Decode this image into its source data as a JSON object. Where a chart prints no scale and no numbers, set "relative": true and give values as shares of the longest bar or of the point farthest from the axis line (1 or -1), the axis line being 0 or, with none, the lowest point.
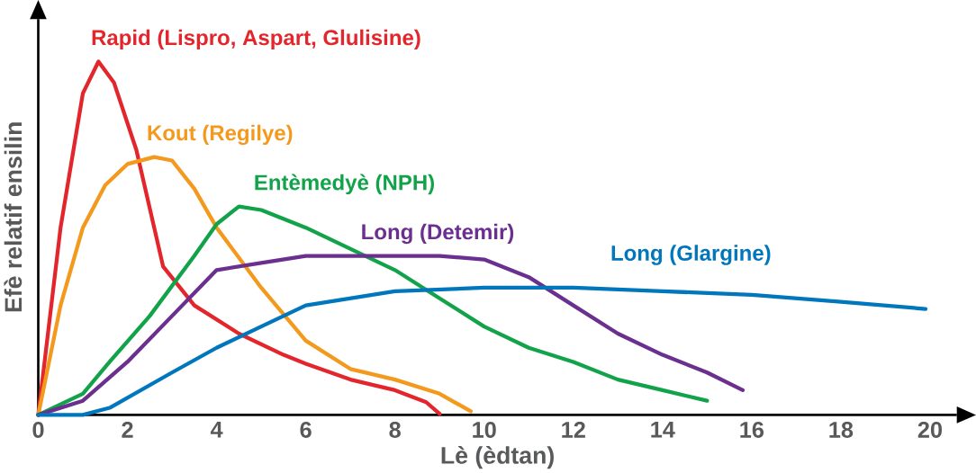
{
  "chart_data": {
    "type": "line",
    "relative": true,
    "xlabel": "Lè (èdtan)",
    "ylabel": "Efè relatif ensilin",
    "xlim": [
      0,
      20.6
    ],
    "xticks": [
      0,
      2,
      4,
      6,
      8,
      10,
      12,
      14,
      16,
      18,
      20
    ],
    "grid": false,
    "marker": "none",
    "line_style": "solid",
    "series": [
      {
        "name": "Rapid (Lispro, Aspart, Glulisine)",
        "color": "#e3262b",
        "x": [
          0,
          0.5,
          1,
          1.35,
          1.7,
          2.2,
          2.8,
          3.5,
          4.5,
          5.5,
          6,
          7,
          8,
          8.7,
          9
        ],
        "values": [
          0,
          0.53,
          0.91,
          1.0,
          0.94,
          0.75,
          0.42,
          0.31,
          0.23,
          0.17,
          0.145,
          0.1,
          0.07,
          0.036,
          0.003
        ]
      },
      {
        "name": "Kout (Regilye)",
        "color": "#f39a1e",
        "x": [
          0,
          0.5,
          1,
          1.5,
          2,
          2.6,
          3,
          3.5,
          4,
          5,
          6,
          7,
          8,
          9,
          9.7
        ],
        "values": [
          0,
          0.31,
          0.53,
          0.65,
          0.71,
          0.73,
          0.72,
          0.64,
          0.53,
          0.36,
          0.21,
          0.13,
          0.1,
          0.06,
          0.01
        ]
      },
      {
        "name": "Entèmedyè (NPH)",
        "color": "#12a34a",
        "x": [
          0,
          1,
          1.6,
          2.5,
          3.5,
          4,
          4.5,
          5,
          6,
          7,
          8,
          9,
          10,
          11,
          12,
          13,
          14,
          15
        ],
        "values": [
          0,
          0.06,
          0.15,
          0.28,
          0.45,
          0.54,
          0.59,
          0.58,
          0.53,
          0.47,
          0.41,
          0.33,
          0.25,
          0.19,
          0.15,
          0.1,
          0.07,
          0.04
        ]
      },
      {
        "name": "Long (Detemir)",
        "color": "#6a2f8f",
        "x": [
          0,
          1,
          2,
          3,
          4,
          5,
          6,
          7,
          8,
          9,
          10,
          11,
          12,
          13,
          14,
          15,
          15.8
        ],
        "values": [
          0,
          0.04,
          0.15,
          0.28,
          0.41,
          0.43,
          0.45,
          0.45,
          0.45,
          0.45,
          0.44,
          0.39,
          0.31,
          0.23,
          0.17,
          0.12,
          0.07
        ]
      },
      {
        "name": "Long (Glargine)",
        "color": "#0077bc",
        "x": [
          0,
          1,
          1.6,
          3,
          4,
          5,
          6,
          8,
          10,
          12,
          14,
          16,
          18,
          19.9
        ],
        "values": [
          0,
          0,
          0.02,
          0.12,
          0.19,
          0.25,
          0.31,
          0.35,
          0.36,
          0.36,
          0.35,
          0.34,
          0.32,
          0.3
        ]
      }
    ]
  }
}
